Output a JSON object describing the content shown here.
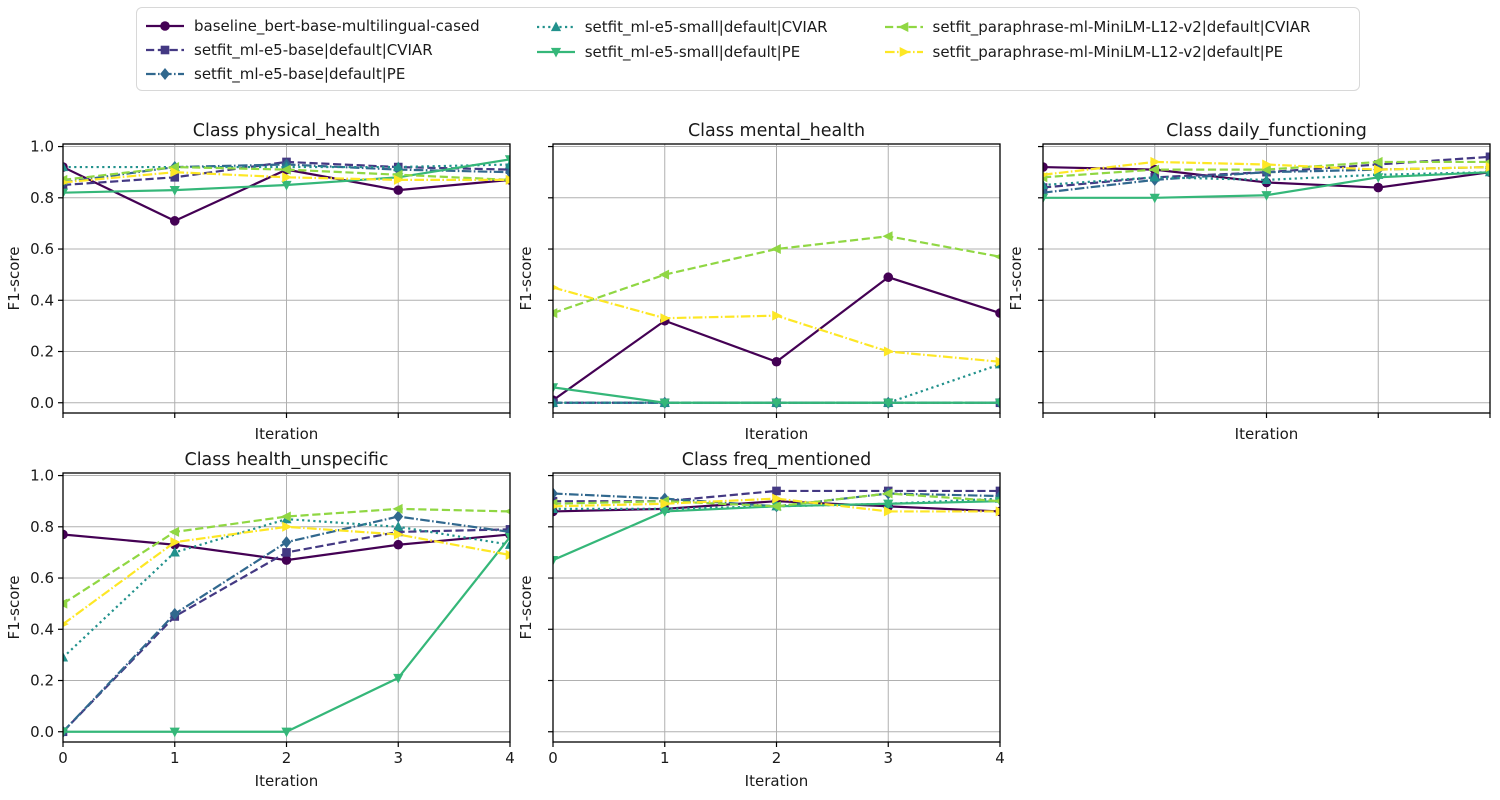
{
  "figure": {
    "background": "#ffffff"
  },
  "legend": {
    "entries": [
      "baseline_bert-base-multilingual-cased",
      "setfit_ml-e5-base|default|CVIAR",
      "setfit_ml-e5-base|default|PE",
      "setfit_ml-e5-small|default|CVIAR",
      "setfit_ml-e5-small|default|PE",
      "setfit_paraphrase-ml-MiniLM-L12-v2|default|CVIAR",
      "setfit_paraphrase-ml-MiniLM-L12-v2|default|PE"
    ],
    "columns": [
      3,
      2,
      2
    ]
  },
  "series_styles": [
    {
      "name": "baseline_bert-base-multilingual-cased",
      "color": "#440154",
      "linestyle": "solid",
      "marker": "circle"
    },
    {
      "name": "setfit_ml-e5-base|default|CVIAR",
      "color": "#443983",
      "linestyle": "dashed",
      "marker": "square"
    },
    {
      "name": "setfit_ml-e5-base|default|PE",
      "color": "#31688e",
      "linestyle": "dashdot",
      "marker": "diamond"
    },
    {
      "name": "setfit_ml-e5-small|default|CVIAR",
      "color": "#21918c",
      "linestyle": "dotted",
      "marker": "triangle-up"
    },
    {
      "name": "setfit_ml-e5-small|default|PE",
      "color": "#35b779",
      "linestyle": "solid",
      "marker": "triangle-down"
    },
    {
      "name": "setfit_paraphrase-ml-MiniLM-L12-v2|default|CVIAR",
      "color": "#90d743",
      "linestyle": "dashed",
      "marker": "triangle-left"
    },
    {
      "name": "setfit_paraphrase-ml-MiniLM-L12-v2|default|PE",
      "color": "#fde725",
      "linestyle": "dashdot",
      "marker": "triangle-right"
    }
  ],
  "axes_defaults": {
    "xlabel": "Iteration",
    "ylabel": "F1-score",
    "xticks": [
      0,
      1,
      2,
      3,
      4
    ],
    "xtick_labels": [
      "0",
      "1",
      "2",
      "3",
      "4"
    ],
    "yticks": [
      0.0,
      0.2,
      0.4,
      0.6,
      0.8,
      1.0
    ],
    "ytick_labels": [
      "0.0",
      "0.2",
      "0.4",
      "0.6",
      "0.8",
      "1.0"
    ],
    "xlim": [
      0,
      4
    ],
    "ylim": [
      -0.04,
      1.01
    ],
    "grid": true,
    "grid_color": "#b0b0b0",
    "spine_color": "#000000",
    "text_color": "#1a1a1a"
  },
  "chart_data": [
    {
      "type": "line",
      "title": "Class physical_health",
      "slot": 0,
      "show_xticklabels": false,
      "show_yticklabels": true,
      "x": [
        0,
        1,
        2,
        3,
        4
      ],
      "series": [
        {
          "name": "baseline_bert-base-multilingual-cased",
          "values": [
            0.92,
            0.71,
            0.91,
            0.83,
            0.87
          ]
        },
        {
          "name": "setfit_ml-e5-base|default|CVIAR",
          "values": [
            0.85,
            0.88,
            0.94,
            0.92,
            0.91
          ]
        },
        {
          "name": "setfit_ml-e5-base|default|PE",
          "values": [
            0.86,
            0.92,
            0.93,
            0.91,
            0.9
          ]
        },
        {
          "name": "setfit_ml-e5-small|default|CVIAR",
          "values": [
            0.92,
            0.92,
            0.92,
            0.92,
            0.93
          ]
        },
        {
          "name": "setfit_ml-e5-small|default|PE",
          "values": [
            0.82,
            0.83,
            0.85,
            0.88,
            0.95
          ]
        },
        {
          "name": "setfit_paraphrase-ml-MiniLM-L12-v2|default|CVIAR",
          "values": [
            0.87,
            0.92,
            0.91,
            0.89,
            0.87
          ]
        },
        {
          "name": "setfit_paraphrase-ml-MiniLM-L12-v2|default|PE",
          "values": [
            0.86,
            0.9,
            0.88,
            0.87,
            0.87
          ]
        }
      ]
    },
    {
      "type": "line",
      "title": "Class mental_health",
      "slot": 1,
      "show_xticklabels": false,
      "show_yticklabels": false,
      "x": [
        0,
        1,
        2,
        3,
        4
      ],
      "series": [
        {
          "name": "baseline_bert-base-multilingual-cased",
          "values": [
            0.01,
            0.32,
            0.16,
            0.49,
            0.35
          ]
        },
        {
          "name": "setfit_ml-e5-base|default|CVIAR",
          "values": [
            0.0,
            0.0,
            0.0,
            0.0,
            0.0
          ]
        },
        {
          "name": "setfit_ml-e5-base|default|PE",
          "values": [
            0.0,
            0.0,
            0.0,
            0.0,
            0.0
          ]
        },
        {
          "name": "setfit_ml-e5-small|default|CVIAR",
          "values": [
            0.0,
            0.0,
            0.0,
            0.0,
            0.15
          ]
        },
        {
          "name": "setfit_ml-e5-small|default|PE",
          "values": [
            0.06,
            0.0,
            0.0,
            0.0,
            0.0
          ]
        },
        {
          "name": "setfit_paraphrase-ml-MiniLM-L12-v2|default|CVIAR",
          "values": [
            0.35,
            0.5,
            0.6,
            0.65,
            0.57
          ]
        },
        {
          "name": "setfit_paraphrase-ml-MiniLM-L12-v2|default|PE",
          "values": [
            0.45,
            0.33,
            0.34,
            0.2,
            0.16
          ]
        }
      ]
    },
    {
      "type": "line",
      "title": "Class daily_functioning",
      "slot": 2,
      "show_xticklabels": false,
      "show_yticklabels": false,
      "x": [
        0,
        1,
        2,
        3,
        4
      ],
      "series": [
        {
          "name": "baseline_bert-base-multilingual-cased",
          "values": [
            0.92,
            0.91,
            0.86,
            0.84,
            0.9
          ]
        },
        {
          "name": "setfit_ml-e5-base|default|CVIAR",
          "values": [
            0.84,
            0.88,
            0.9,
            0.93,
            0.96
          ]
        },
        {
          "name": "setfit_ml-e5-base|default|PE",
          "values": [
            0.82,
            0.87,
            0.9,
            0.91,
            0.92
          ]
        },
        {
          "name": "setfit_ml-e5-small|default|CVIAR",
          "values": [
            0.85,
            0.88,
            0.87,
            0.89,
            0.9
          ]
        },
        {
          "name": "setfit_ml-e5-small|default|PE",
          "values": [
            0.8,
            0.8,
            0.81,
            0.88,
            0.9
          ]
        },
        {
          "name": "setfit_paraphrase-ml-MiniLM-L12-v2|default|CVIAR",
          "values": [
            0.88,
            0.91,
            0.91,
            0.94,
            0.94
          ]
        },
        {
          "name": "setfit_paraphrase-ml-MiniLM-L12-v2|default|PE",
          "values": [
            0.89,
            0.94,
            0.93,
            0.91,
            0.92
          ]
        }
      ]
    },
    {
      "type": "line",
      "title": "Class health_unspecific",
      "slot": 3,
      "show_xticklabels": true,
      "show_yticklabels": true,
      "x": [
        0,
        1,
        2,
        3,
        4
      ],
      "series": [
        {
          "name": "baseline_bert-base-multilingual-cased",
          "values": [
            0.77,
            0.73,
            0.67,
            0.73,
            0.77
          ]
        },
        {
          "name": "setfit_ml-e5-base|default|CVIAR",
          "values": [
            0.0,
            0.45,
            0.7,
            0.78,
            0.79
          ]
        },
        {
          "name": "setfit_ml-e5-base|default|PE",
          "values": [
            0.0,
            0.46,
            0.74,
            0.84,
            0.78
          ]
        },
        {
          "name": "setfit_ml-e5-small|default|CVIAR",
          "values": [
            0.29,
            0.7,
            0.83,
            0.8,
            0.73
          ]
        },
        {
          "name": "setfit_ml-e5-small|default|PE",
          "values": [
            0.0,
            0.0,
            0.0,
            0.21,
            0.76
          ]
        },
        {
          "name": "setfit_paraphrase-ml-MiniLM-L12-v2|default|CVIAR",
          "values": [
            0.5,
            0.78,
            0.84,
            0.87,
            0.86
          ]
        },
        {
          "name": "setfit_paraphrase-ml-MiniLM-L12-v2|default|PE",
          "values": [
            0.42,
            0.74,
            0.8,
            0.77,
            0.69
          ]
        }
      ]
    },
    {
      "type": "line",
      "title": "Class freq_mentioned",
      "slot": 4,
      "show_xticklabels": true,
      "show_yticklabels": false,
      "x": [
        0,
        1,
        2,
        3,
        4
      ],
      "series": [
        {
          "name": "baseline_bert-base-multilingual-cased",
          "values": [
            0.86,
            0.87,
            0.9,
            0.88,
            0.86
          ]
        },
        {
          "name": "setfit_ml-e5-base|default|CVIAR",
          "values": [
            0.9,
            0.9,
            0.94,
            0.94,
            0.94
          ]
        },
        {
          "name": "setfit_ml-e5-base|default|PE",
          "values": [
            0.93,
            0.91,
            0.88,
            0.93,
            0.92
          ]
        },
        {
          "name": "setfit_ml-e5-small|default|CVIAR",
          "values": [
            0.87,
            0.87,
            0.88,
            0.89,
            0.91
          ]
        },
        {
          "name": "setfit_ml-e5-small|default|PE",
          "values": [
            0.67,
            0.86,
            0.88,
            0.89,
            0.9
          ]
        },
        {
          "name": "setfit_paraphrase-ml-MiniLM-L12-v2|default|CVIAR",
          "values": [
            0.89,
            0.9,
            0.88,
            0.93,
            0.9
          ]
        },
        {
          "name": "setfit_paraphrase-ml-MiniLM-L12-v2|default|PE",
          "values": [
            0.88,
            0.89,
            0.91,
            0.86,
            0.86
          ]
        }
      ]
    }
  ]
}
